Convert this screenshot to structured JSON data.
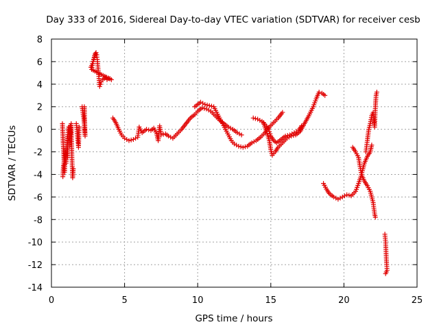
{
  "chart_data": {
    "type": "scatter",
    "title": "Day 333 of 2016, Sidereal Day-to-day VTEC variation (SDTVAR) for receiver cesb",
    "xlabel": "GPS time / hours",
    "ylabel": "SDTVAR / TECUs",
    "xlim": [
      0,
      25
    ],
    "ylim": [
      -14,
      8
    ],
    "xticks": [
      0,
      5,
      10,
      15,
      20,
      25
    ],
    "yticks": [
      -14,
      -12,
      -10,
      -8,
      -6,
      -4,
      -2,
      0,
      2,
      4,
      6,
      8
    ],
    "grid": true,
    "marker": "+",
    "color": "#e00000",
    "series": [
      {
        "name": "SDTVAR",
        "segments": [
          [
            [
              0.75,
              0.5
            ],
            [
              0.8,
              -1.2
            ],
            [
              0.85,
              -2.5
            ],
            [
              0.9,
              -3.8
            ],
            [
              0.95,
              -2.0
            ],
            [
              1.0,
              -3.0
            ],
            [
              1.05,
              -1.5
            ],
            [
              1.1,
              -2.5
            ],
            [
              1.15,
              -1.0
            ],
            [
              1.2,
              -0.5
            ],
            [
              1.25,
              -1.5
            ],
            [
              1.3,
              0.0
            ],
            [
              1.35,
              0.5
            ],
            [
              1.4,
              -2.5
            ],
            [
              1.45,
              -4.3
            ],
            [
              1.5,
              -3.5
            ]
          ],
          [
            [
              0.78,
              -4.2
            ],
            [
              0.82,
              -3.2
            ],
            [
              0.88,
              -2.8
            ],
            [
              0.93,
              -1.8
            ],
            [
              0.98,
              -2.2
            ],
            [
              1.03,
              -2.0
            ],
            [
              1.08,
              -0.8
            ],
            [
              1.13,
              -0.3
            ],
            [
              1.18,
              0.2
            ],
            [
              1.23,
              -0.2
            ],
            [
              1.28,
              0.3
            ],
            [
              1.32,
              -0.4
            ]
          ],
          [
            [
              1.7,
              0.5
            ],
            [
              1.75,
              -0.2
            ],
            [
              1.8,
              -1.0
            ],
            [
              1.85,
              -1.6
            ],
            [
              1.9,
              0.2
            ]
          ],
          [
            [
              2.1,
              2.0
            ],
            [
              2.15,
              1.5
            ],
            [
              2.2,
              1.0
            ],
            [
              2.25,
              0.3
            ],
            [
              2.3,
              -0.6
            ],
            [
              2.25,
              2.0
            ]
          ],
          [
            [
              2.7,
              5.5
            ],
            [
              2.8,
              5.8
            ],
            [
              2.9,
              6.2
            ],
            [
              3.0,
              6.7
            ],
            [
              3.1,
              6.6
            ],
            [
              3.15,
              6.0
            ],
            [
              3.2,
              5.2
            ],
            [
              3.25,
              4.5
            ],
            [
              3.3,
              3.8
            ],
            [
              3.4,
              4.2
            ],
            [
              3.5,
              4.4
            ],
            [
              3.6,
              4.5
            ],
            [
              3.7,
              4.6
            ],
            [
              3.8,
              4.4
            ],
            [
              3.9,
              4.5
            ],
            [
              4.0,
              4.5
            ],
            [
              4.1,
              4.4
            ],
            [
              2.75,
              5.3
            ],
            [
              2.85,
              6.0
            ],
            [
              2.95,
              6.5
            ],
            [
              3.05,
              6.8
            ]
          ],
          [
            [
              4.2,
              1.0
            ],
            [
              4.4,
              0.6
            ],
            [
              4.6,
              0.0
            ],
            [
              4.8,
              -0.5
            ],
            [
              5.0,
              -0.8
            ],
            [
              5.3,
              -1.0
            ],
            [
              5.6,
              -0.9
            ],
            [
              5.9,
              -0.7
            ],
            [
              6.0,
              0.2
            ],
            [
              6.2,
              -0.3
            ],
            [
              6.5,
              0.0
            ],
            [
              6.8,
              -0.1
            ],
            [
              7.0,
              0.1
            ],
            [
              7.2,
              -0.4
            ],
            [
              7.3,
              -1.0
            ],
            [
              7.4,
              0.3
            ],
            [
              7.5,
              -0.5
            ],
            [
              7.8,
              -0.4
            ],
            [
              8.0,
              -0.6
            ],
            [
              8.3,
              -0.8
            ],
            [
              8.6,
              -0.4
            ],
            [
              8.9,
              0.0
            ],
            [
              9.2,
              0.5
            ],
            [
              9.5,
              1.0
            ],
            [
              9.8,
              1.3
            ],
            [
              10.0,
              1.6
            ],
            [
              10.3,
              1.9
            ],
            [
              10.6,
              1.8
            ],
            [
              10.9,
              1.6
            ],
            [
              11.2,
              1.2
            ],
            [
              11.5,
              0.8
            ],
            [
              11.8,
              0.5
            ],
            [
              12.1,
              0.2
            ],
            [
              12.4,
              0.0
            ],
            [
              12.7,
              -0.3
            ],
            [
              13.0,
              -0.5
            ]
          ],
          [
            [
              9.8,
              2.0
            ],
            [
              10.0,
              2.2
            ],
            [
              10.2,
              2.4
            ],
            [
              10.5,
              2.2
            ],
            [
              10.8,
              2.1
            ],
            [
              11.1,
              2.0
            ],
            [
              11.3,
              1.5
            ],
            [
              11.5,
              1.0
            ],
            [
              11.7,
              0.5
            ],
            [
              11.9,
              0.0
            ],
            [
              12.1,
              -0.5
            ],
            [
              12.3,
              -1.0
            ],
            [
              12.5,
              -1.3
            ],
            [
              12.8,
              -1.5
            ],
            [
              13.1,
              -1.6
            ],
            [
              13.4,
              -1.5
            ],
            [
              13.7,
              -1.2
            ],
            [
              14.0,
              -1.0
            ],
            [
              14.3,
              -0.7
            ],
            [
              14.6,
              -0.3
            ],
            [
              14.9,
              0.2
            ],
            [
              15.2,
              0.6
            ],
            [
              15.5,
              1.0
            ],
            [
              15.8,
              1.5
            ]
          ],
          [
            [
              13.8,
              1.0
            ],
            [
              14.1,
              0.9
            ],
            [
              14.4,
              0.7
            ],
            [
              14.7,
              0.3
            ],
            [
              14.9,
              -0.2
            ],
            [
              15.0,
              -0.6
            ],
            [
              15.2,
              -1.0
            ],
            [
              15.4,
              -1.2
            ],
            [
              15.6,
              -1.0
            ],
            [
              15.8,
              -0.8
            ],
            [
              16.0,
              -0.6
            ],
            [
              16.3,
              -0.5
            ],
            [
              16.6,
              -0.3
            ],
            [
              16.9,
              -0.1
            ],
            [
              17.1,
              0.3
            ]
          ],
          [
            [
              14.5,
              0.6
            ],
            [
              14.7,
              -0.2
            ],
            [
              14.9,
              -1.0
            ],
            [
              15.0,
              -1.8
            ],
            [
              15.1,
              -2.3
            ],
            [
              15.3,
              -2.0
            ],
            [
              15.5,
              -1.6
            ],
            [
              15.8,
              -1.2
            ],
            [
              16.1,
              -0.8
            ],
            [
              16.4,
              -0.6
            ],
            [
              16.7,
              -0.5
            ],
            [
              17.0,
              -0.2
            ],
            [
              17.3,
              0.5
            ],
            [
              17.6,
              1.2
            ],
            [
              17.9,
              2.0
            ],
            [
              18.1,
              2.7
            ],
            [
              18.3,
              3.3
            ],
            [
              18.5,
              3.2
            ],
            [
              18.7,
              3.0
            ]
          ],
          [
            [
              18.6,
              -4.8
            ],
            [
              18.8,
              -5.3
            ],
            [
              19.0,
              -5.7
            ],
            [
              19.3,
              -6.0
            ],
            [
              19.6,
              -6.2
            ],
            [
              19.9,
              -6.0
            ],
            [
              20.2,
              -5.8
            ],
            [
              20.5,
              -5.9
            ],
            [
              20.8,
              -5.5
            ],
            [
              21.0,
              -4.8
            ],
            [
              21.2,
              -4.0
            ],
            [
              21.4,
              -3.0
            ],
            [
              21.6,
              -2.4
            ],
            [
              21.8,
              -2.0
            ],
            [
              21.9,
              -1.4
            ]
          ],
          [
            [
              20.6,
              -1.6
            ],
            [
              20.8,
              -2.0
            ],
            [
              21.0,
              -2.5
            ],
            [
              21.1,
              -3.3
            ],
            [
              21.2,
              -4.0
            ],
            [
              21.4,
              -4.6
            ],
            [
              21.6,
              -5.0
            ],
            [
              21.8,
              -5.5
            ],
            [
              22.0,
              -6.5
            ],
            [
              22.1,
              -7.5
            ],
            [
              22.15,
              -7.8
            ]
          ],
          [
            [
              21.5,
              -2.0
            ],
            [
              21.6,
              -1.0
            ],
            [
              21.7,
              0.0
            ],
            [
              21.8,
              0.5
            ],
            [
              21.9,
              1.2
            ],
            [
              22.0,
              1.5
            ],
            [
              22.05,
              0.8
            ],
            [
              22.1,
              0.2
            ],
            [
              22.15,
              2.0
            ],
            [
              22.2,
              3.0
            ],
            [
              22.25,
              3.3
            ]
          ],
          [
            [
              22.8,
              -9.3
            ],
            [
              22.85,
              -10.0
            ],
            [
              22.9,
              -11.5
            ],
            [
              22.95,
              -12.5
            ],
            [
              22.85,
              -12.8
            ]
          ]
        ]
      }
    ]
  }
}
